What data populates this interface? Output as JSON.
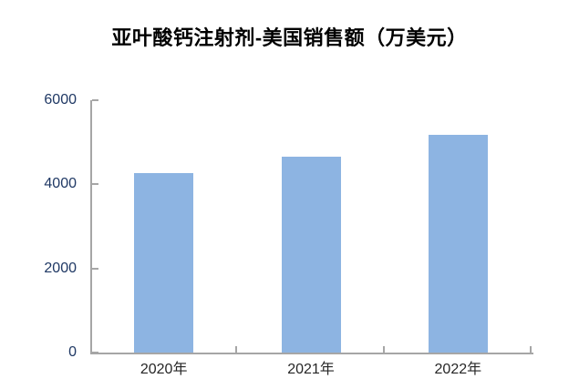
{
  "chart_data": {
    "type": "bar",
    "title": "亚叶酸钙注射剂-美国销售额（万美元）",
    "categories": [
      "2020年",
      "2021年",
      "2022年"
    ],
    "values": [
      4270,
      4660,
      5170
    ],
    "xlabel": "",
    "ylabel": "",
    "ylim": [
      0,
      6000
    ],
    "yticks": [
      0,
      2000,
      4000,
      6000
    ],
    "grid": false,
    "legend_position": "none",
    "bar_color": "#8db4e2",
    "axis_color": "#a6a6a6",
    "title_color": "#000000",
    "ytick_label_color": "#1f3864",
    "xtick_label_color": "#262626"
  }
}
